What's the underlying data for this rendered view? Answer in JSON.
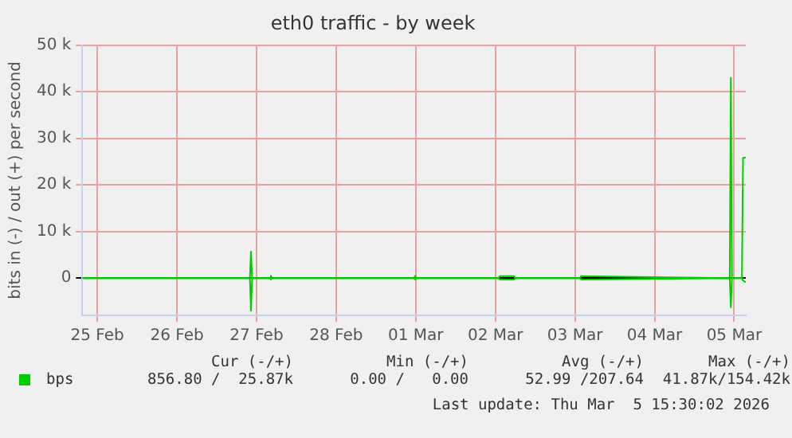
{
  "chart_data": {
    "type": "line",
    "title": "eth0 traffic - by week",
    "ylabel": "bits in (-) / out (+) per second",
    "x": [
      "2026-02-25T07:30",
      "2026-02-27T10:00",
      "2026-02-27T10:20",
      "2026-02-27T10:40",
      "2026-02-27T16:00",
      "2026-02-27T16:20",
      "2026-02-27T16:40",
      "2026-03-01T11:30",
      "2026-03-01T11:50",
      "2026-03-01T12:10",
      "2026-03-02T13:00",
      "2026-03-02T13:20",
      "2026-03-02T17:40",
      "2026-03-02T18:00",
      "2026-03-03T13:30",
      "2026-03-03T13:50",
      "2026-03-05T10:40",
      "2026-03-05T11:00",
      "2026-03-05T11:20",
      "2026-03-05T14:20",
      "2026-03-05T14:40",
      "2026-03-05T15:30"
    ],
    "series": [
      {
        "color": "#00cc00",
        "values": [
          0,
          0,
          -7000,
          0,
          0,
          -300,
          0,
          0,
          -300,
          0,
          0,
          -300,
          -300,
          0,
          0,
          -300,
          0,
          -6300,
          0,
          0,
          -500,
          -900
        ]
      },
      {
        "name": "bps",
        "color": "#00cc00",
        "values": [
          0,
          0,
          5700,
          0,
          0,
          500,
          0,
          0,
          500,
          0,
          0,
          400,
          400,
          0,
          0,
          400,
          0,
          43000,
          0,
          0,
          25800,
          25900
        ]
      }
    ],
    "xlim": [
      "2026-02-25T07:30",
      "2026-03-05T15:30"
    ],
    "xticks": [
      {
        "value": "2026-02-25T12:00",
        "label": "25 Feb"
      },
      {
        "value": "2026-02-26T12:00",
        "label": "26 Feb"
      },
      {
        "value": "2026-02-27T12:00",
        "label": "27 Feb"
      },
      {
        "value": "2026-02-28T12:00",
        "label": "28 Feb"
      },
      {
        "value": "2026-03-01T12:00",
        "label": "01 Mar"
      },
      {
        "value": "2026-03-02T12:00",
        "label": "02 Mar"
      },
      {
        "value": "2026-03-03T12:00",
        "label": "03 Mar"
      },
      {
        "value": "2026-03-04T12:00",
        "label": "04 Mar"
      },
      {
        "value": "2026-03-05T12:00",
        "label": "05 Mar"
      }
    ],
    "ylim": [
      -8000,
      50000
    ],
    "yticks": [
      0,
      {
        "value": 10000,
        "label": "10 k"
      },
      {
        "value": 20000,
        "label": "20 k"
      },
      {
        "value": 30000,
        "label": "30 k"
      },
      {
        "value": 40000,
        "label": "40 k"
      },
      {
        "value": 50000,
        "label": "50 k"
      }
    ],
    "grid": true,
    "legend": "bottom left",
    "marker": "none",
    "line_style": "solid",
    "annotations": [
      "Cur (-/+)",
      "Min (-/+)",
      "Avg (-/+)",
      "Max (-/+)",
      "856.80 /  25.87k",
      "0.00 /   0.00",
      "52.99 /207.64",
      "41.87k/154.42k",
      "Last update: Thu Mar  5 15:30:02 2026"
    ]
  }
}
